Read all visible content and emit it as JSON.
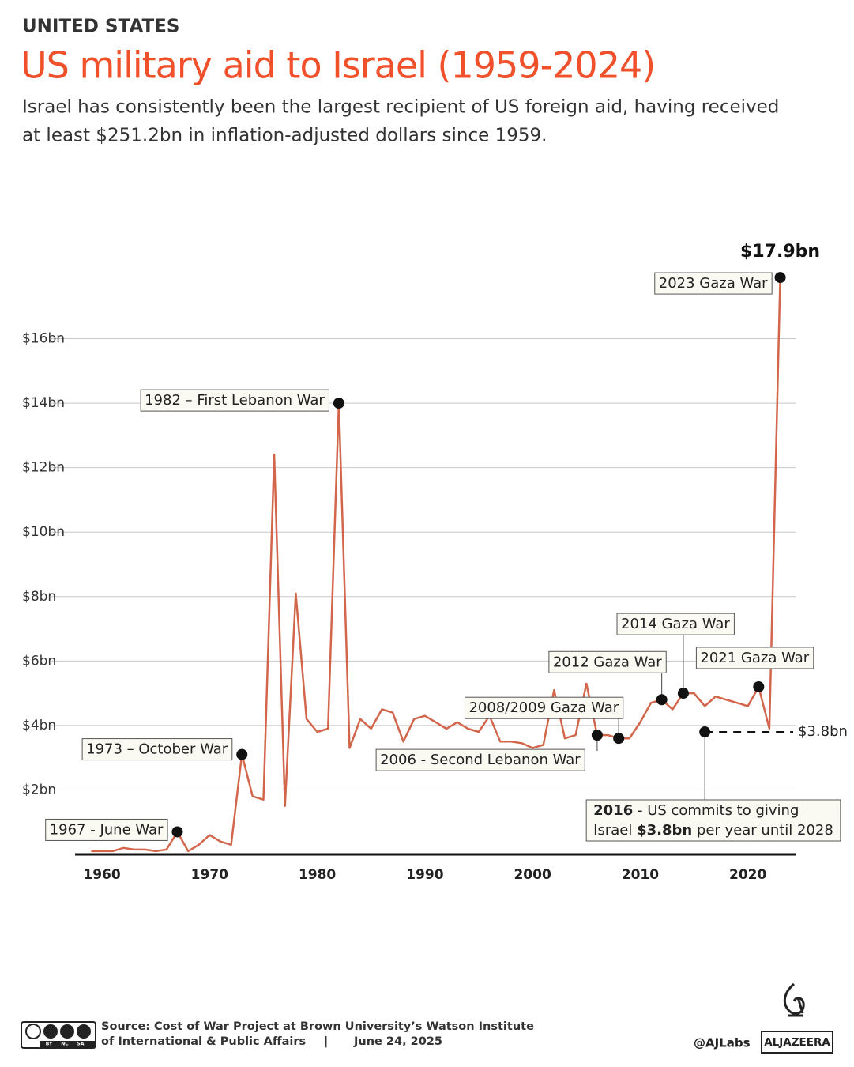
{
  "header": "UNITED STATES",
  "chart_data": {
    "type": "line",
    "title": "US military aid to Israel (1959-2024)",
    "subtitle": [
      "Israel has consistently been the largest recipient of US foreign aid, having received",
      "at least $251.2bn in inflation-adjusted dollars since 1959."
    ],
    "x": [
      1959,
      1960,
      1961,
      1962,
      1963,
      1964,
      1965,
      1966,
      1967,
      1968,
      1969,
      1970,
      1971,
      1972,
      1973,
      1974,
      1975,
      1976,
      1977,
      1978,
      1979,
      1980,
      1981,
      1982,
      1983,
      1984,
      1985,
      1986,
      1987,
      1988,
      1989,
      1990,
      1991,
      1992,
      1993,
      1994,
      1995,
      1996,
      1997,
      1998,
      1999,
      2000,
      2001,
      2002,
      2003,
      2004,
      2005,
      2006,
      2007,
      2008,
      2009,
      2010,
      2011,
      2012,
      2013,
      2014,
      2015,
      2016,
      2017,
      2018,
      2019,
      2020,
      2021,
      2022,
      2023
    ],
    "series": [
      {
        "name": "US military aid",
        "color": "#d2664b",
        "values": [
          0.1,
          0.1,
          0.1,
          0.2,
          0.15,
          0.15,
          0.1,
          0.15,
          0.7,
          0.1,
          0.3,
          0.6,
          0.4,
          0.3,
          3.1,
          1.8,
          1.7,
          12.4,
          1.5,
          8.1,
          4.2,
          3.8,
          3.9,
          14.0,
          3.3,
          4.2,
          3.9,
          4.5,
          4.4,
          3.5,
          4.2,
          4.3,
          4.1,
          3.9,
          4.1,
          3.9,
          3.8,
          4.3,
          3.5,
          3.5,
          3.45,
          3.3,
          3.4,
          5.1,
          3.6,
          3.7,
          5.3,
          3.7,
          3.7,
          3.6,
          3.6,
          4.1,
          4.7,
          4.8,
          4.5,
          5.0,
          5.0,
          4.6,
          4.9,
          4.8,
          4.7,
          4.6,
          5.2,
          3.9,
          17.9
        ],
        "value_labels": [
          null,
          null,
          null,
          null,
          null,
          null,
          null,
          null,
          null,
          null,
          null,
          null,
          null,
          null,
          null,
          null,
          null,
          null,
          null,
          null,
          null,
          null,
          null,
          null,
          null,
          null,
          null,
          null,
          null,
          null,
          null,
          null,
          null,
          null,
          null,
          null,
          null,
          null,
          null,
          null,
          null,
          null,
          null,
          null,
          null,
          null,
          null,
          null,
          null,
          null,
          null,
          null,
          null,
          null,
          null,
          null,
          null,
          null,
          null,
          null,
          null,
          null,
          null,
          null,
          "$17.9bn"
        ]
      }
    ],
    "xlim": [
      1957.5,
      2024.5
    ],
    "xticks": [
      1960,
      1970,
      1980,
      1990,
      2000,
      2010,
      2020
    ],
    "ylim": [
      0,
      18
    ],
    "yticks": [
      {
        "value": 2,
        "label": "$2bn"
      },
      {
        "value": 4,
        "label": "$4bn"
      },
      {
        "value": 6,
        "label": "$6bn"
      },
      {
        "value": 8,
        "label": "$8bn"
      },
      {
        "value": 10,
        "label": "$10bn"
      },
      {
        "value": 12,
        "label": "$12bn"
      },
      {
        "value": 14,
        "label": "$14bn"
      },
      {
        "value": 16,
        "label": "$16bn"
      }
    ],
    "grid": true,
    "annotations": [
      {
        "label": "1967 - June War",
        "x": 1967
      },
      {
        "label": "1973 – October War",
        "x": 1973
      },
      {
        "label": "1982 – First Lebanon War",
        "x": 1982
      },
      {
        "label": "2006 - Second Lebanon War",
        "x": 2006
      },
      {
        "label": "2008/2009 Gaza War",
        "x": 2008
      },
      {
        "label": "2012 Gaza War",
        "x": 2012
      },
      {
        "label": "2014 Gaza War",
        "x": 2014
      },
      {
        "label": "2021 Gaza War",
        "x": 2021
      },
      {
        "label": "2023 Gaza War",
        "x": 2023
      }
    ],
    "commitment": {
      "x": 2016,
      "value": 3.8,
      "label": "$3.8bn",
      "note": [
        "2016",
        " - US commits to giving",
        "Israel ",
        "$3.8bn",
        " per year until 2028"
      ]
    }
  },
  "footer": {
    "source_prefix": "Source:",
    "source": [
      "Cost of War Project at Brown University’s Watson Institute",
      "of International & Public Affairs"
    ],
    "separator": "|",
    "date": "June 24, 2025",
    "credit": "@AJLabs",
    "brand": "ALJAZEERA",
    "license": [
      "BY",
      "NC",
      "SA"
    ]
  }
}
